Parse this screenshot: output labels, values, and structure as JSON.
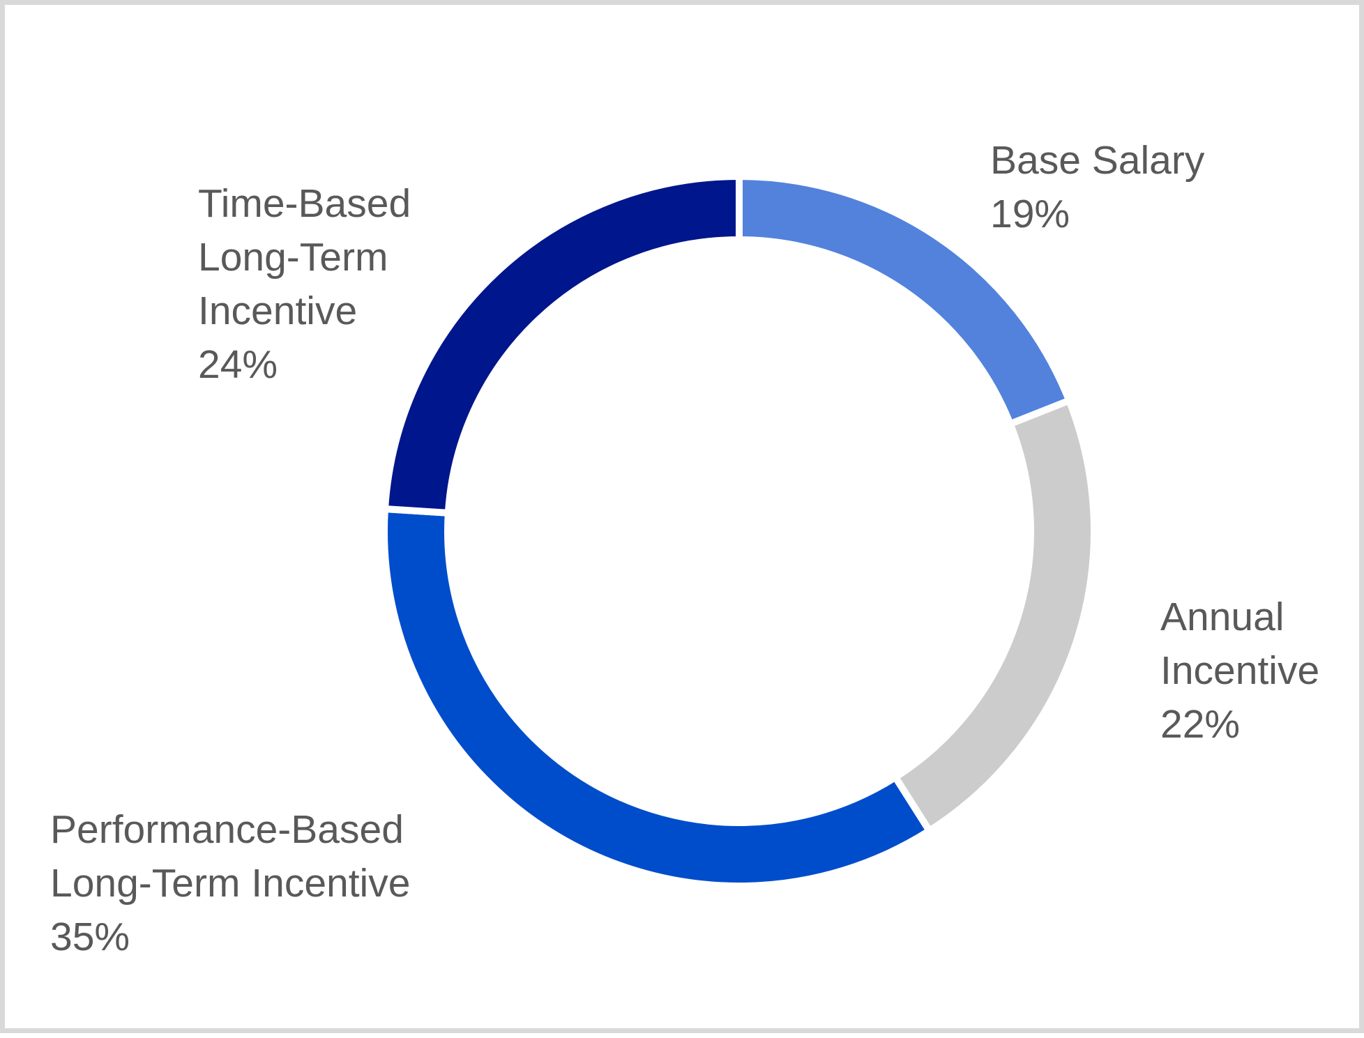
{
  "chart_data": {
    "type": "donut",
    "categories": [
      "Base Salary",
      "Annual Incentive",
      "Performance-Based Long-Term Incentive",
      "Time-Based Long-Term Incentive"
    ],
    "values": [
      19,
      22,
      35,
      24
    ],
    "value_labels": [
      "19%",
      "22%",
      "35%",
      "24%"
    ],
    "colors": [
      "#5282dc",
      "#cccccc",
      "#004dcc",
      "#00168c"
    ]
  }
}
